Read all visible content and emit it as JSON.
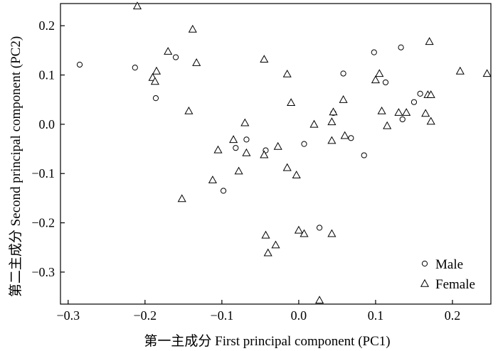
{
  "chart_data": {
    "type": "scatter",
    "xlabel": "第一主成分 First principal component (PC1)",
    "ylabel": "第二主成分 Second principal component (PC2)",
    "xlim": [
      -0.31,
      0.25
    ],
    "ylim": [
      -0.365,
      0.245
    ],
    "x_ticks": [
      -0.3,
      -0.2,
      -0.1,
      0.0,
      0.1,
      0.2
    ],
    "x_tick_labels": [
      "−0.3",
      "−0.2",
      "−0.1",
      "0.0",
      "0.1",
      "0.2"
    ],
    "y_ticks": [
      -0.3,
      -0.2,
      -0.1,
      0.0,
      0.1,
      0.2
    ],
    "y_tick_labels": [
      "−0.3",
      "−0.2",
      "−0.1",
      "0.0",
      "0.1",
      "0.2"
    ],
    "grid": false,
    "legend": "bottom-right",
    "series": [
      {
        "name": "Male",
        "marker": "circle",
        "points": [
          [
            -0.285,
            0.121
          ],
          [
            -0.213,
            0.115
          ],
          [
            -0.16,
            0.136
          ],
          [
            -0.186,
            0.053
          ],
          [
            -0.098,
            -0.135
          ],
          [
            -0.082,
            -0.048
          ],
          [
            -0.068,
            -0.031
          ],
          [
            -0.043,
            -0.053
          ],
          [
            0.007,
            -0.04
          ],
          [
            0.027,
            -0.21
          ],
          [
            0.045,
            0.023
          ],
          [
            0.058,
            0.103
          ],
          [
            0.068,
            -0.028
          ],
          [
            0.085,
            -0.063
          ],
          [
            0.098,
            0.146
          ],
          [
            0.113,
            0.085
          ],
          [
            0.133,
            0.156
          ],
          [
            0.135,
            0.01
          ],
          [
            0.15,
            0.045
          ],
          [
            0.158,
            0.062
          ]
        ]
      },
      {
        "name": "Female",
        "marker": "triangle",
        "points": [
          [
            -0.21,
            0.24
          ],
          [
            -0.17,
            0.148
          ],
          [
            -0.138,
            0.193
          ],
          [
            -0.133,
            0.125
          ],
          [
            -0.185,
            0.108
          ],
          [
            -0.19,
            0.095
          ],
          [
            -0.187,
            0.087
          ],
          [
            -0.143,
            0.027
          ],
          [
            -0.152,
            -0.151
          ],
          [
            -0.112,
            -0.113
          ],
          [
            -0.105,
            -0.052
          ],
          [
            -0.085,
            -0.031
          ],
          [
            -0.078,
            -0.095
          ],
          [
            -0.068,
            -0.058
          ],
          [
            -0.07,
            0.003
          ],
          [
            -0.045,
            0.132
          ],
          [
            -0.045,
            -0.062
          ],
          [
            -0.027,
            -0.045
          ],
          [
            -0.015,
            -0.088
          ],
          [
            -0.015,
            0.102
          ],
          [
            -0.01,
            0.044
          ],
          [
            -0.003,
            -0.103
          ],
          [
            0.02,
            0.0
          ],
          [
            -0.043,
            -0.225
          ],
          [
            -0.04,
            -0.261
          ],
          [
            -0.03,
            -0.245
          ],
          [
            0.0,
            -0.215
          ],
          [
            0.007,
            -0.222
          ],
          [
            0.043,
            -0.222
          ],
          [
            0.027,
            -0.357
          ],
          [
            0.043,
            -0.033
          ],
          [
            0.043,
            0.005
          ],
          [
            0.045,
            0.025
          ],
          [
            0.058,
            0.05
          ],
          [
            0.06,
            -0.023
          ],
          [
            0.1,
            0.09
          ],
          [
            0.105,
            0.103
          ],
          [
            0.108,
            0.027
          ],
          [
            0.115,
            -0.003
          ],
          [
            0.13,
            0.024
          ],
          [
            0.14,
            0.024
          ],
          [
            0.165,
            0.022
          ],
          [
            0.168,
            0.06
          ],
          [
            0.172,
            0.06
          ],
          [
            0.172,
            0.006
          ],
          [
            0.17,
            0.168
          ],
          [
            0.21,
            0.108
          ],
          [
            0.245,
            0.103
          ]
        ]
      }
    ]
  }
}
